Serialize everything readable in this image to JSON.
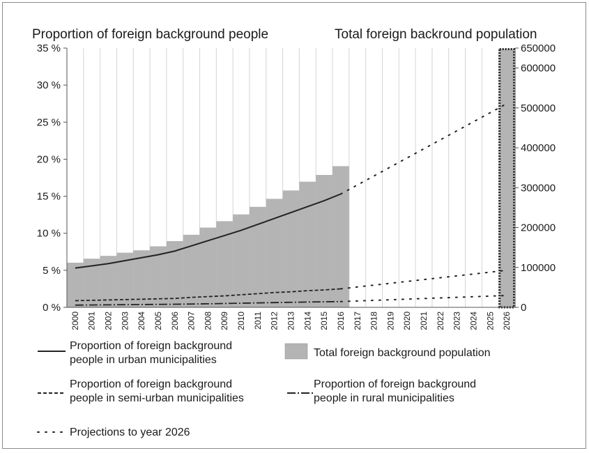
{
  "chart_data": {
    "type": "bar",
    "title_left": "Proportion of foreign background people",
    "title_right": "Total foreign backround population",
    "x": [
      "2000",
      "2001",
      "2002",
      "2003",
      "2004",
      "2005",
      "2006",
      "2007",
      "2008",
      "2009",
      "2010",
      "2011",
      "2012",
      "2013",
      "2014",
      "2015",
      "2016",
      "2017",
      "2018",
      "2019",
      "2020",
      "2021",
      "2022",
      "2023",
      "2024",
      "2025",
      "2026"
    ],
    "y_left": {
      "range": [
        0,
        35
      ],
      "ticks": [
        "0 %",
        "5 %",
        "10 %",
        "15 %",
        "20 %",
        "25 %",
        "30 %",
        "35 %"
      ],
      "tick_values": [
        0,
        5,
        10,
        15,
        20,
        25,
        30,
        35
      ]
    },
    "y_right": {
      "range": [
        0,
        650000
      ],
      "ticks": [
        "0",
        "100000",
        "200000",
        "300000",
        "400000",
        "500000",
        "600000",
        "650000"
      ],
      "tick_values": [
        0,
        100000,
        200000,
        300000,
        400000,
        500000,
        600000,
        650000
      ]
    },
    "bars": {
      "name": "Total foreign background population",
      "axis": "right",
      "x": [
        "2000",
        "2001",
        "2002",
        "2003",
        "2004",
        "2005",
        "2006",
        "2007",
        "2008",
        "2009",
        "2010",
        "2011",
        "2012",
        "2013",
        "2014",
        "2015",
        "2016"
      ],
      "values": [
        112000,
        122000,
        129000,
        137000,
        143000,
        153000,
        166000,
        182000,
        200000,
        216000,
        233000,
        252000,
        272000,
        293000,
        315000,
        332000,
        354000
      ]
    },
    "bar_2026": {
      "x": "2026",
      "value": 650000,
      "style": "dotted-outline"
    },
    "series": [
      {
        "name": "Proportion of foreign background people in urban municipalities",
        "style": "solid",
        "axis": "left",
        "x": [
          "2000",
          "2001",
          "2002",
          "2003",
          "2004",
          "2005",
          "2006",
          "2007",
          "2008",
          "2009",
          "2010",
          "2011",
          "2012",
          "2013",
          "2014",
          "2015",
          "2016"
        ],
        "values": [
          5.3,
          5.6,
          5.9,
          6.3,
          6.7,
          7.1,
          7.6,
          8.3,
          9.0,
          9.7,
          10.4,
          11.2,
          12.0,
          12.8,
          13.6,
          14.4,
          15.3
        ]
      },
      {
        "name": "Proportion of foreign background people in semi-urban municipalities",
        "style": "dashed",
        "axis": "left",
        "x": [
          "2000",
          "2001",
          "2002",
          "2003",
          "2004",
          "2005",
          "2006",
          "2007",
          "2008",
          "2009",
          "2010",
          "2011",
          "2012",
          "2013",
          "2014",
          "2015",
          "2016"
        ],
        "values": [
          0.9,
          0.95,
          1.0,
          1.05,
          1.1,
          1.15,
          1.2,
          1.35,
          1.45,
          1.55,
          1.7,
          1.85,
          2.0,
          2.1,
          2.25,
          2.35,
          2.5
        ]
      },
      {
        "name": "Proportion of foreign background people in rural municipalities",
        "style": "dashdot",
        "axis": "left",
        "x": [
          "2000",
          "2001",
          "2002",
          "2003",
          "2004",
          "2005",
          "2006",
          "2007",
          "2008",
          "2009",
          "2010",
          "2011",
          "2012",
          "2013",
          "2014",
          "2015",
          "2016"
        ],
        "values": [
          0.3,
          0.32,
          0.34,
          0.36,
          0.38,
          0.4,
          0.42,
          0.45,
          0.48,
          0.52,
          0.56,
          0.6,
          0.64,
          0.68,
          0.72,
          0.75,
          0.78
        ]
      }
    ],
    "projections": {
      "name": "Projections to year 2026",
      "style": "dotted",
      "lines": [
        {
          "axis": "left",
          "x": [
            "2016",
            "2026"
          ],
          "values": [
            15.3,
            27.5
          ]
        },
        {
          "axis": "left",
          "x": [
            "2016",
            "2026"
          ],
          "values": [
            2.5,
            5.0
          ]
        },
        {
          "axis": "left",
          "x": [
            "2016",
            "2026"
          ],
          "values": [
            0.78,
            1.6
          ]
        }
      ]
    },
    "legend": [
      {
        "style": "solid",
        "line1": "Proportion of foreign background",
        "line2": "people in urban municipalities"
      },
      {
        "style": "bar",
        "line1": "Total foreign background population",
        "line2": ""
      },
      {
        "style": "dashed",
        "line1": "Proportion of foreign background",
        "line2": "people in semi-urban municipalities"
      },
      {
        "style": "dashdot",
        "line1": "Proportion of foreign background",
        "line2": "people in rural municipalities"
      },
      {
        "style": "dotted",
        "line1": "Projections to year 2026",
        "line2": ""
      }
    ],
    "colors": {
      "bar_fill": "#b4b4b4",
      "line": "#222222",
      "grid": "#d4d4d4"
    },
    "grid": true
  }
}
